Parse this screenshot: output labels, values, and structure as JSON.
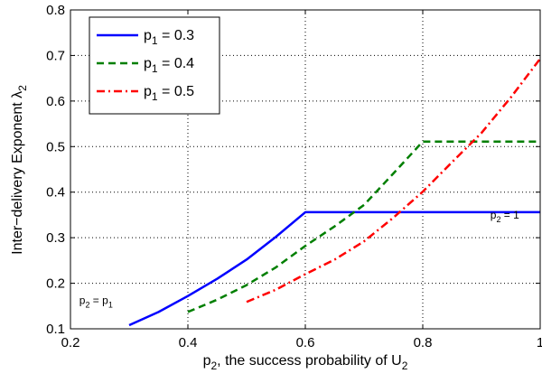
{
  "chart_data": {
    "type": "line",
    "xlim": [
      0.2,
      1.0
    ],
    "ylim": [
      0.1,
      0.8
    ],
    "xticks": [
      {
        "v": 0.2,
        "label": "0.2"
      },
      {
        "v": 0.4,
        "label": "0.4"
      },
      {
        "v": 0.6,
        "label": "0.6"
      },
      {
        "v": 0.8,
        "label": "0.8"
      },
      {
        "v": 1.0,
        "label": "1"
      }
    ],
    "yticks": [
      {
        "v": 0.1,
        "label": "0.1"
      },
      {
        "v": 0.2,
        "label": "0.2"
      },
      {
        "v": 0.3,
        "label": "0.3"
      },
      {
        "v": 0.4,
        "label": "0.4"
      },
      {
        "v": 0.5,
        "label": "0.5"
      },
      {
        "v": 0.6,
        "label": "0.6"
      },
      {
        "v": 0.7,
        "label": "0.7"
      },
      {
        "v": 0.8,
        "label": "0.8"
      }
    ],
    "grid": true,
    "grid_style": "dotted",
    "legend_position": "top-left",
    "xlabel": {
      "pre": "p",
      "sub1": "2",
      "mid": ", the success probability of U",
      "sub2": "2"
    },
    "ylabel": {
      "main": "Inter−delivery Exponent λ",
      "sub": "2"
    },
    "series": [
      {
        "label_main": "p",
        "label_sub": "1",
        "label_rest": " = 0.3",
        "color": "#0000ff",
        "dash": "solid",
        "x": [
          0.3,
          0.35,
          0.4,
          0.45,
          0.5,
          0.55,
          0.6,
          0.7,
          0.8,
          0.9,
          1.0
        ],
        "y": [
          0.108,
          0.137,
          0.172,
          0.21,
          0.252,
          0.302,
          0.356,
          0.356,
          0.356,
          0.356,
          0.356
        ]
      },
      {
        "label_main": "p",
        "label_sub": "1",
        "label_rest": " = 0.4",
        "color": "#007f00",
        "dash": "dashed",
        "x": [
          0.4,
          0.45,
          0.5,
          0.55,
          0.6,
          0.65,
          0.7,
          0.75,
          0.8,
          0.9,
          1.0
        ],
        "y": [
          0.137,
          0.164,
          0.196,
          0.235,
          0.282,
          0.325,
          0.372,
          0.441,
          0.511,
          0.511,
          0.511
        ]
      },
      {
        "label_main": "p",
        "label_sub": "1",
        "label_rest": " = 0.5",
        "color": "#ff0000",
        "dash": "dashdot",
        "x": [
          0.5,
          0.55,
          0.6,
          0.65,
          0.7,
          0.75,
          0.8,
          0.85,
          0.9,
          0.95,
          1.0
        ],
        "y": [
          0.159,
          0.186,
          0.22,
          0.252,
          0.292,
          0.344,
          0.401,
          0.466,
          0.53,
          0.608,
          0.693
        ]
      }
    ],
    "annotations": [
      {
        "main": "p",
        "sub1": "2",
        "mid": " = p",
        "sub2": "1",
        "x": 0.215,
        "y": 0.155
      },
      {
        "main": "p",
        "sub1": "2",
        "mid": " = 1",
        "sub2": "",
        "x": 0.915,
        "y": 0.342
      }
    ]
  }
}
